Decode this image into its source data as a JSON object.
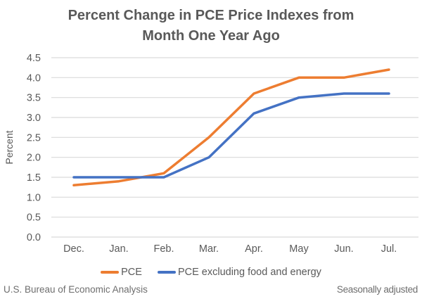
{
  "title": "Percent Change in PCE Price Indexes from Month One Year Ago",
  "footer": {
    "source": "U.S. Bureau of Economic Analysis",
    "note": "Seasonally adjusted"
  },
  "colors": {
    "pce_line": "#ED7D31",
    "core_line": "#4472C4",
    "gridline": "#D9D9D9",
    "text": "#595959",
    "footer_text": "#6e6e6e"
  },
  "chart_data": {
    "type": "line",
    "title": "Percent Change in PCE Price Indexes from Month One Year Ago",
    "xlabel": "",
    "ylabel": "Percent",
    "categories": [
      "Dec.",
      "Jan.",
      "Feb.",
      "Mar.",
      "Apr.",
      "May",
      "Jun.",
      "Jul."
    ],
    "series": [
      {
        "name": "PCE",
        "color": "#ED7D31",
        "values": [
          1.3,
          1.4,
          1.6,
          2.5,
          3.6,
          4.0,
          4.0,
          4.2
        ]
      },
      {
        "name": "PCE excluding food and energy",
        "color": "#4472C4",
        "values": [
          1.5,
          1.5,
          1.5,
          2.0,
          3.1,
          3.5,
          3.6,
          3.6
        ]
      }
    ],
    "ylim": [
      0.0,
      4.5
    ],
    "ytick_step": 0.5,
    "ytick_format_decimals": 1,
    "grid": true,
    "legend_position": "bottom",
    "source_note_left": "U.S. Bureau of Economic Analysis",
    "source_note_right": "Seasonally adjusted"
  }
}
